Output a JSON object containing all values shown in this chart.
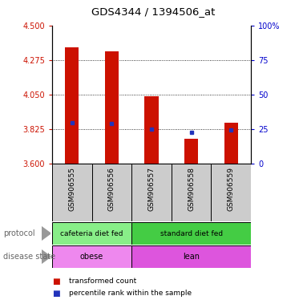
{
  "title": "GDS4344 / 1394506_at",
  "samples": [
    "GSM906555",
    "GSM906556",
    "GSM906557",
    "GSM906558",
    "GSM906559"
  ],
  "bar_values": [
    4.36,
    4.33,
    4.04,
    3.76,
    3.865
  ],
  "bar_bottom": 3.6,
  "percentile_values": [
    3.865,
    3.862,
    3.825,
    3.805,
    3.818
  ],
  "ylim": [
    3.6,
    4.5
  ],
  "yticks_left": [
    3.6,
    3.825,
    4.05,
    4.275,
    4.5
  ],
  "yticks_right_vals": [
    0,
    25,
    50,
    75,
    100
  ],
  "yticks_right_labels": [
    "0",
    "25",
    "50",
    "75",
    "100%"
  ],
  "bar_color": "#cc1100",
  "percentile_color": "#2233bb",
  "protocol_color_1": "#88ee88",
  "protocol_color_2": "#44cc44",
  "disease_color_1": "#ee88ee",
  "disease_color_2": "#dd55dd",
  "sample_bg_color": "#cccccc",
  "protocol_label": "protocol",
  "disease_label": "disease state",
  "protocol_text_1": "cafeteria diet fed",
  "protocol_text_2": "standard diet fed",
  "disease_text_1": "obese",
  "disease_text_2": "lean",
  "legend_bar_label": "transformed count",
  "legend_pct_label": "percentile rank within the sample"
}
